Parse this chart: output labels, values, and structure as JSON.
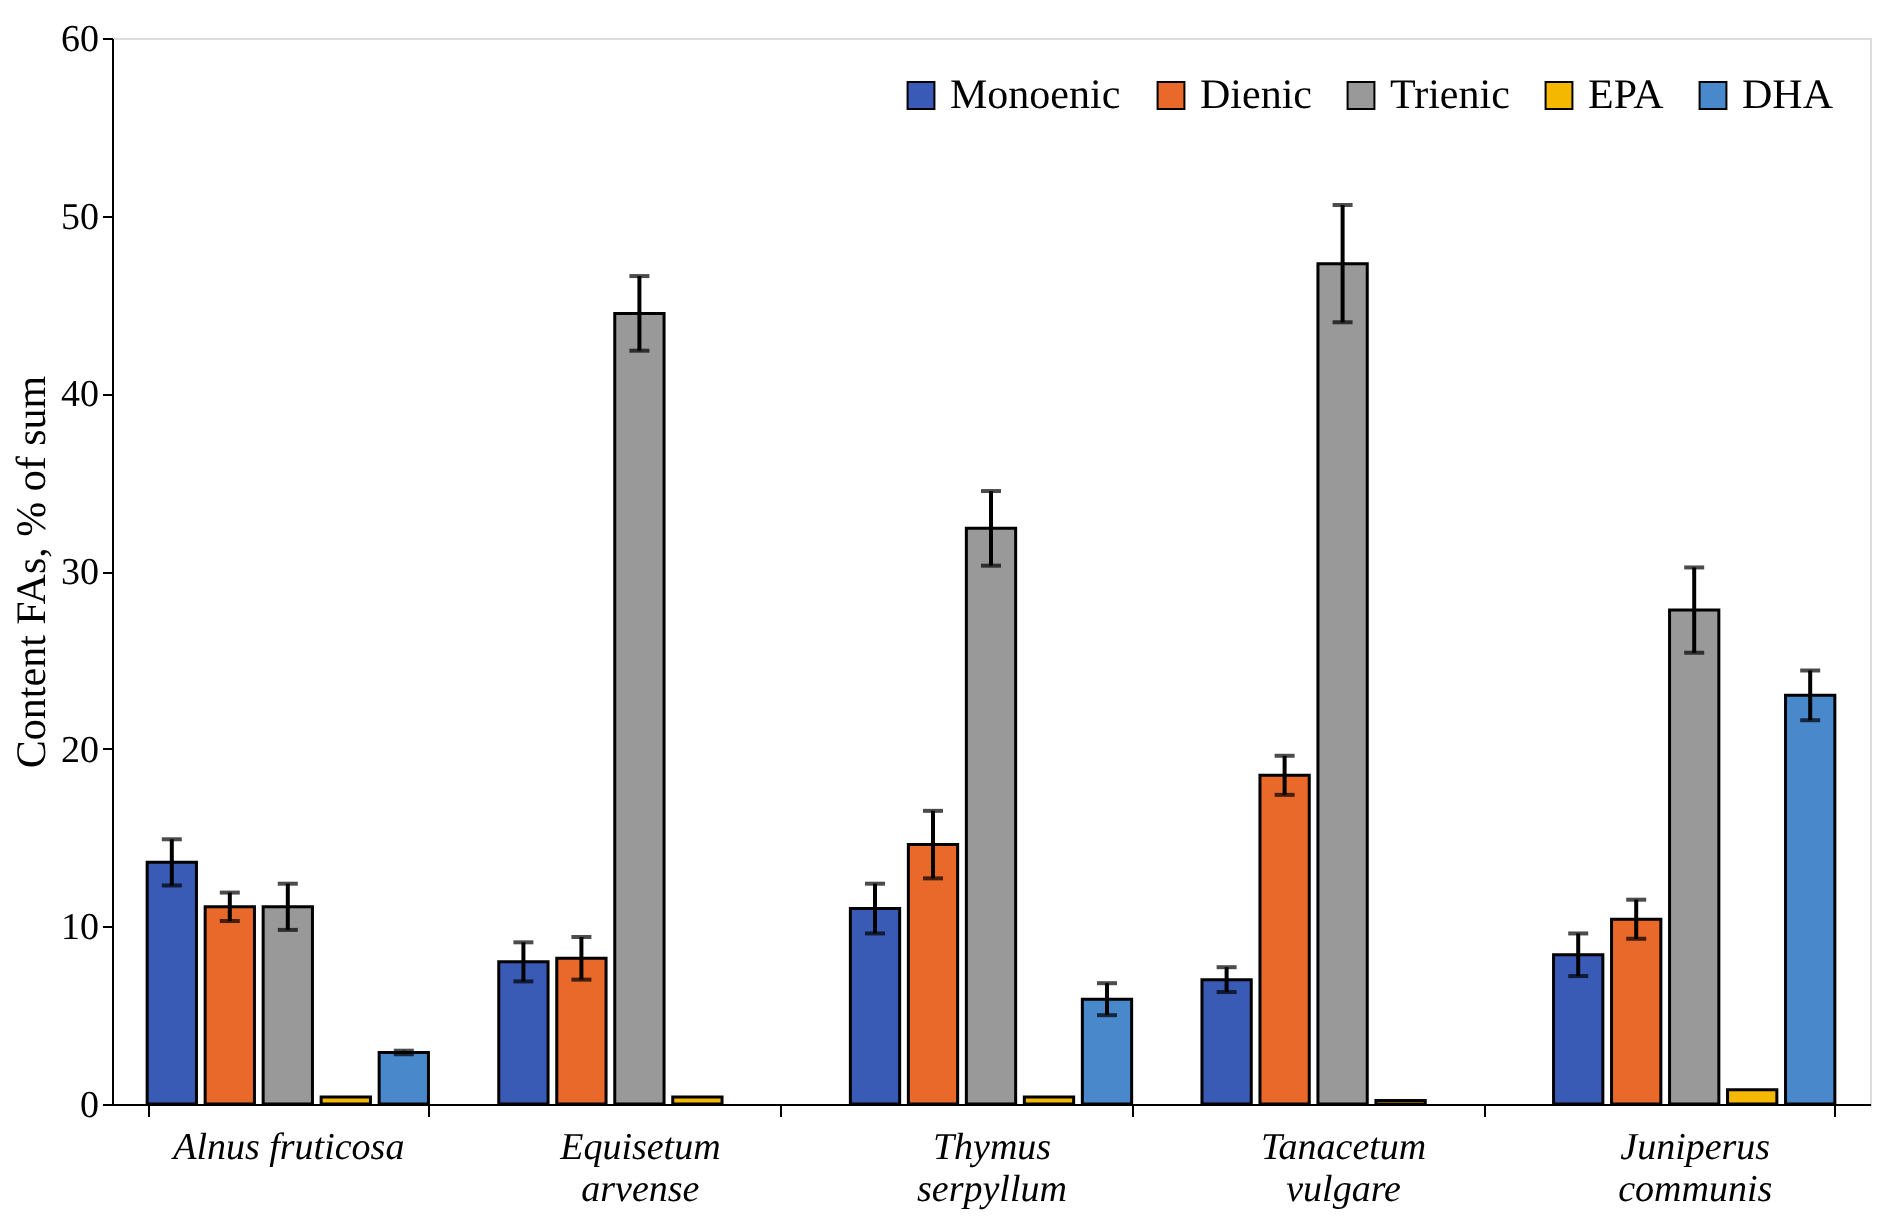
{
  "chart_data": {
    "type": "bar",
    "ylabel": "Content FAs, % of sum",
    "categories": [
      "Alnus fruticosa",
      "Equisetum arvense",
      "Thymus serpyllum",
      "Tanacetum vulgare",
      "Juniperus communis"
    ],
    "ylim": [
      0,
      60
    ],
    "yticks": [
      0,
      10,
      20,
      30,
      40,
      50,
      60
    ],
    "grid": false,
    "legend": "top right",
    "series": [
      {
        "name": "Monoenic",
        "color": "#3a5bb5",
        "values": [
          13.6,
          8.0,
          11.0,
          7.0,
          8.4
        ],
        "errors": [
          1.3,
          1.1,
          1.4,
          0.7,
          1.2
        ]
      },
      {
        "name": "Dienic",
        "color": "#e8692a",
        "values": [
          11.1,
          8.2,
          14.6,
          18.5,
          10.4
        ],
        "errors": [
          0.8,
          1.2,
          1.9,
          1.1,
          1.1
        ]
      },
      {
        "name": "Trienic",
        "color": "#999999",
        "values": [
          11.1,
          44.5,
          32.4,
          47.3,
          27.8
        ],
        "errors": [
          1.3,
          2.1,
          2.1,
          3.3,
          2.4
        ]
      },
      {
        "name": "EPA",
        "color": "#f5b800",
        "values": [
          0.4,
          0.4,
          0.4,
          0.2,
          0.8
        ],
        "errors": [
          null,
          null,
          null,
          null,
          null
        ]
      },
      {
        "name": "DHA",
        "color": "#4a88cc",
        "values": [
          2.9,
          null,
          5.9,
          null,
          23.0
        ],
        "errors": [
          0.1,
          null,
          0.9,
          null,
          1.4
        ]
      }
    ]
  }
}
